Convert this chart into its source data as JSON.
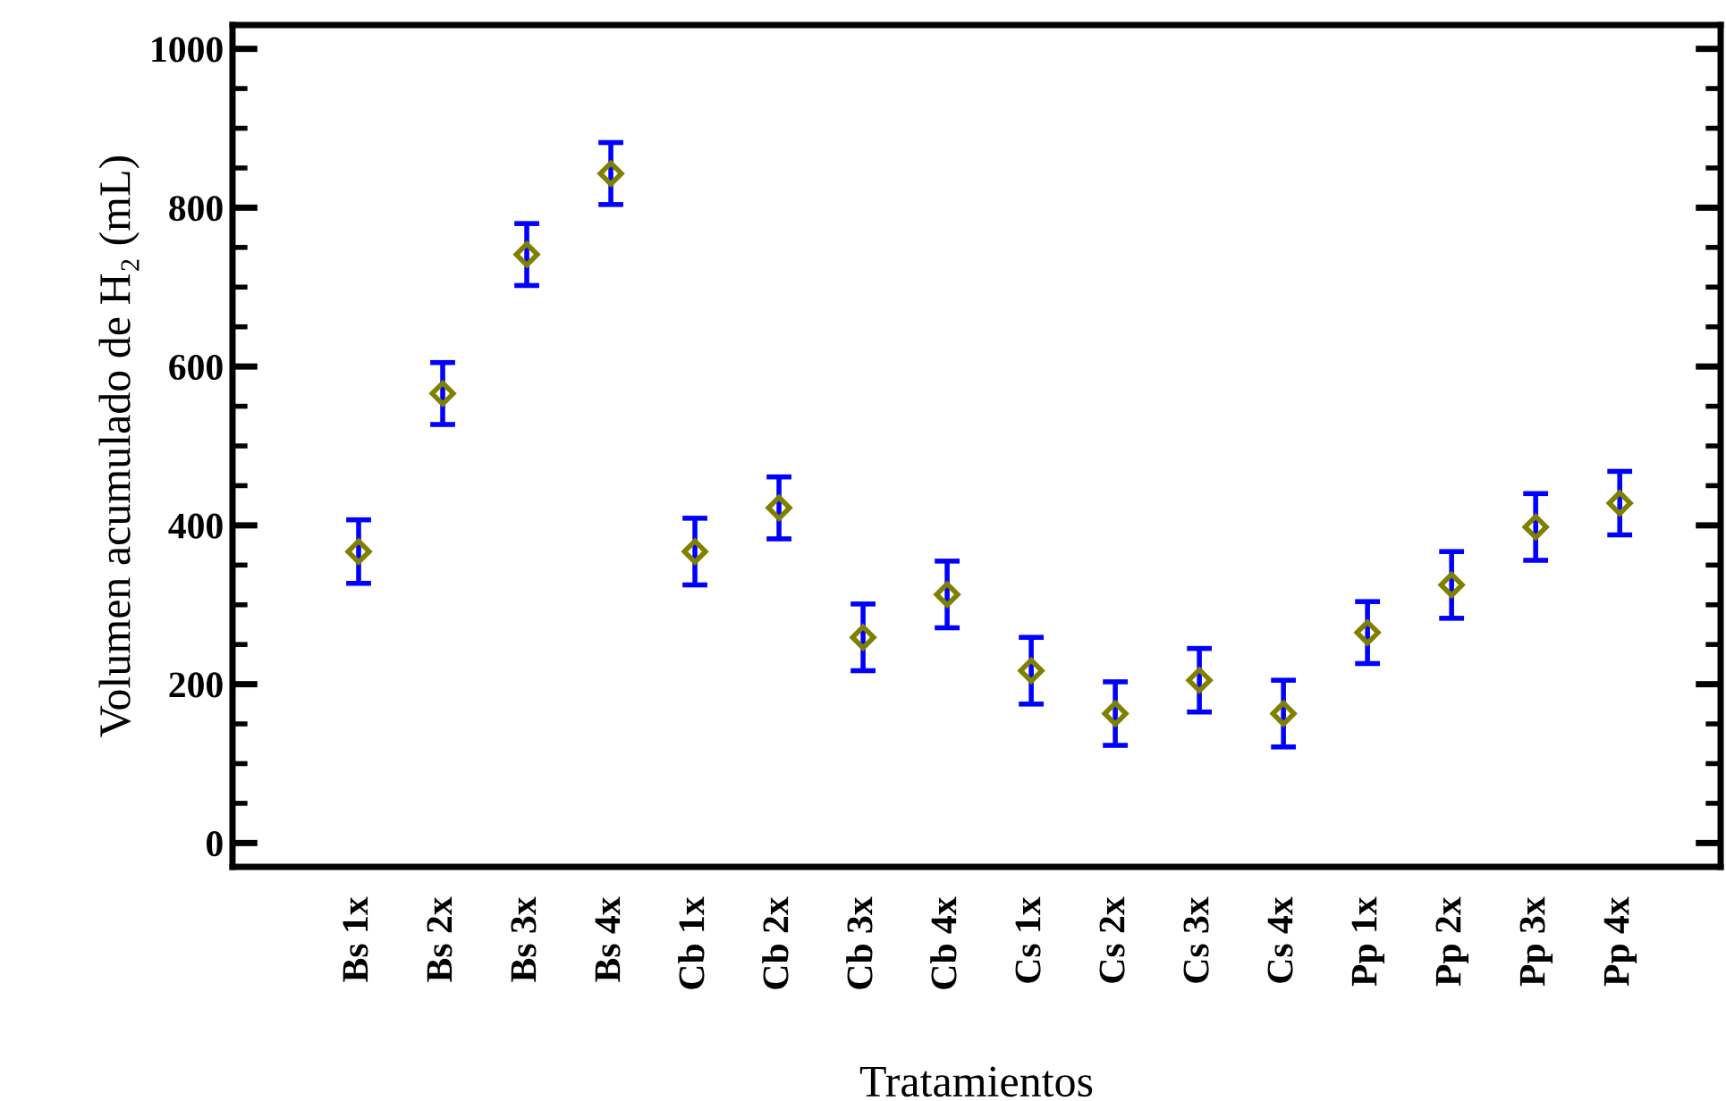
{
  "chart_data": {
    "type": "scatter",
    "xlabel": "Tratamientos",
    "ylabel": "Volumen acumulado de H₂ (mL)",
    "categories": [
      "Bs 1x",
      "Bs 2x",
      "Bs 3x",
      "Bs 4x",
      "Cb 1x",
      "Cb 2x",
      "Cb 3x",
      "Cb 4x",
      "Cs 1x",
      "Cs 2x",
      "Cs 3x",
      "Cs 4x",
      "Pp 1x",
      "Pp 2x",
      "Pp 3x",
      "Pp 4x"
    ],
    "series": [
      {
        "color": "#808000",
        "values": [
          367,
          566,
          741,
          843,
          367,
          422,
          259,
          313,
          217,
          163,
          205,
          163,
          265,
          325,
          398,
          428
        ],
        "errors": [
          40,
          39,
          39,
          39,
          42,
          39,
          42,
          42,
          42,
          40,
          40,
          42,
          39,
          42,
          42,
          40
        ]
      }
    ],
    "marker": "diamond",
    "grid": false,
    "legend": false,
    "ylim": [
      -30,
      1030
    ],
    "yticks": [
      0,
      {
        "value": 50,
        "label": null
      },
      200,
      {
        "value": 100,
        "label": null
      },
      {
        "value": 150,
        "label": null
      },
      {
        "value": 250,
        "label": null
      },
      {
        "value": 300,
        "label": null
      },
      {
        "value": 350,
        "label": null
      },
      400,
      {
        "value": 450,
        "label": null
      },
      {
        "value": 500,
        "label": null
      },
      {
        "value": 550,
        "label": null
      },
      600,
      {
        "value": 650,
        "label": null
      },
      {
        "value": 700,
        "label": null
      },
      {
        "value": 750,
        "label": null
      },
      800,
      {
        "value": 850,
        "label": null
      },
      {
        "value": 900,
        "label": null
      },
      {
        "value": 950,
        "label": null
      },
      1000
    ]
  }
}
